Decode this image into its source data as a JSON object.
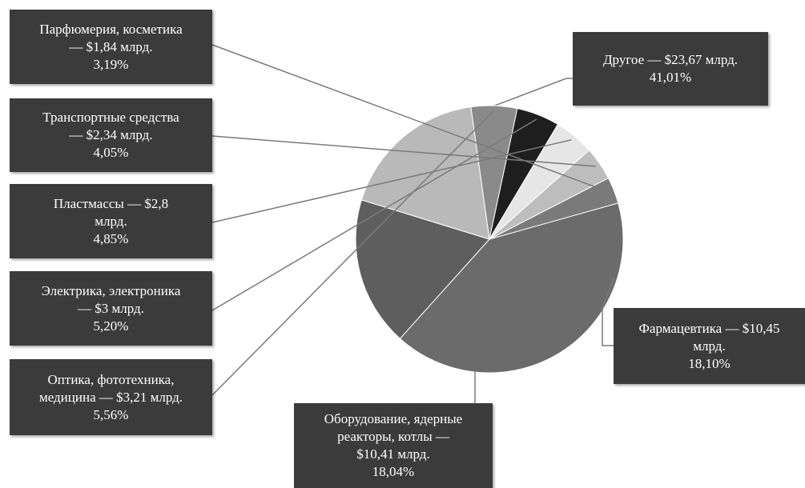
{
  "chart_data": {
    "type": "pie",
    "slices": [
      {
        "label": "Другое — $23,67 млрд.",
        "percent_label": "41,01%",
        "value": 23.67,
        "percent": 41.01,
        "color": "#6b6b6b"
      },
      {
        "label": "Фармацевтика — $10,45 млрд.",
        "percent_label": "18,10%",
        "value": 10.45,
        "percent": 18.1,
        "color": "#5e5e5e"
      },
      {
        "label": "Оборудование, ядерные реакторы, котлы — $10,41 млрд.",
        "percent_label": "18,04%",
        "value": 10.41,
        "percent": 18.04,
        "color": "#b9b9b9"
      },
      {
        "label": "Оптика, фототехника, медицина — $3,21 млрд.",
        "percent_label": "5,56%",
        "value": 3.21,
        "percent": 5.56,
        "color": "#8a8a8a"
      },
      {
        "label": "Электрика, электроника — $3 млрд.",
        "percent_label": "5,20%",
        "value": 3.0,
        "percent": 5.2,
        "color": "#1e1e1e"
      },
      {
        "label": "Пластмассы — $2,8 млрд.",
        "percent_label": "4,85%",
        "value": 2.8,
        "percent": 4.85,
        "color": "#e6e6e6"
      },
      {
        "label": "Транспортные средства — $2,34 млрд.",
        "percent_label": "4,05%",
        "value": 2.34,
        "percent": 4.05,
        "color": "#bdbdbd"
      },
      {
        "label": "Парфюмерия, косметика — $1,84 млрд.",
        "percent_label": "3,19%",
        "value": 1.84,
        "percent": 3.19,
        "color": "#7a7a7a"
      }
    ],
    "callout_lines": [
      [
        "Другое — $23,67 млрд.",
        "41,01%"
      ],
      [
        "Фармацевтика — $10,45",
        "млрд.",
        "18,10%"
      ],
      [
        "Оборудование, ядерные",
        "реакторы, котлы —",
        "$10,41 млрд.",
        "18,04%"
      ],
      [
        "Оптика, фототехника,",
        "медицина — $3,21 млрд.",
        "5,56%"
      ],
      [
        "Электрика, электроника",
        "— $3 млрд.",
        "5,20%"
      ],
      [
        "Пластмассы — $2,8",
        "млрд.",
        "4,85%"
      ],
      [
        "Транспортные средства",
        "— $2,34 млрд.",
        "4,05%"
      ],
      [
        "Парфюмерия, косметика",
        "— $1,84 млрд.",
        "3,19%"
      ]
    ]
  }
}
